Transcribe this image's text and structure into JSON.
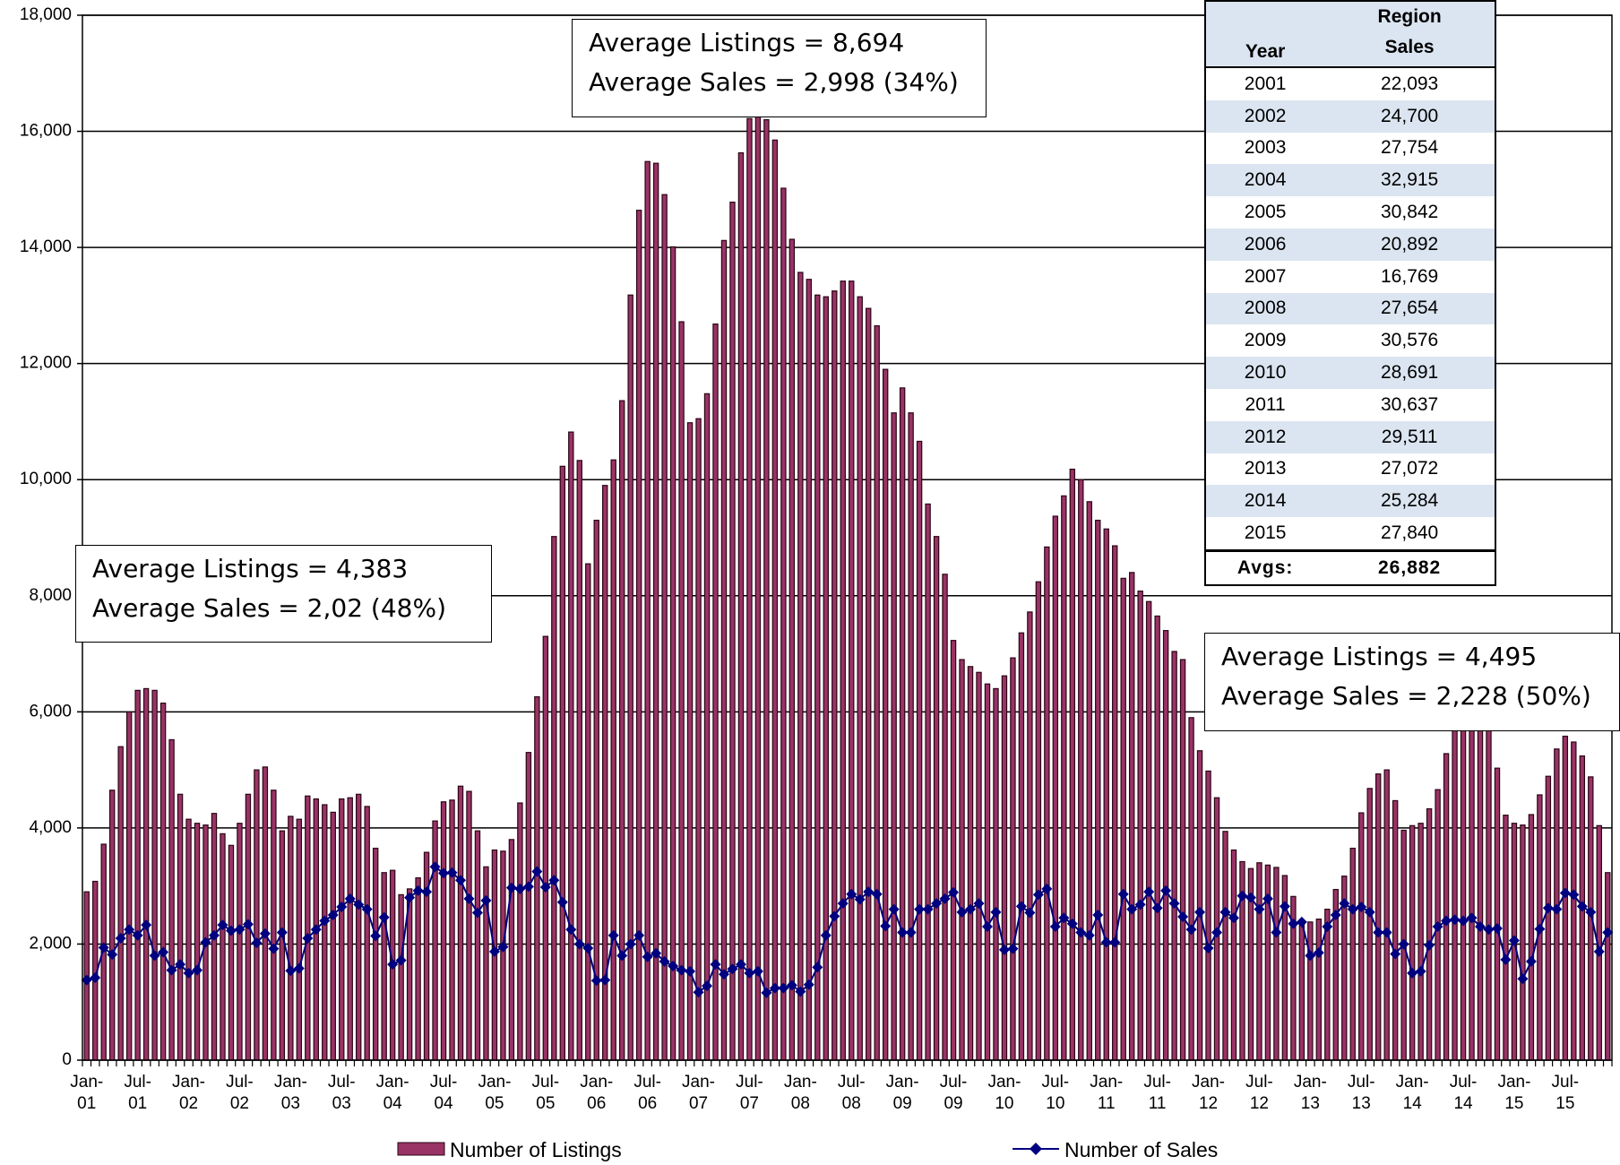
{
  "chart_data": {
    "type": "bar_line",
    "categories": [
      "Jan-01",
      null,
      null,
      null,
      null,
      null,
      "Jul-01",
      null,
      null,
      null,
      null,
      null,
      "Jan-02",
      null,
      null,
      null,
      null,
      null,
      "Jul-02",
      null,
      null,
      null,
      null,
      null,
      "Jan-03",
      null,
      null,
      null,
      null,
      null,
      "Jul-03",
      null,
      null,
      null,
      null,
      null,
      "Jan-04",
      null,
      null,
      null,
      null,
      null,
      "Jul-04",
      null,
      null,
      null,
      null,
      null,
      "Jan-05",
      null,
      null,
      null,
      null,
      null,
      "Jul-05",
      null,
      null,
      null,
      null,
      null,
      "Jan-06",
      null,
      null,
      null,
      null,
      null,
      "Jul-06",
      null,
      null,
      null,
      null,
      null,
      "Jan-07",
      null,
      null,
      null,
      null,
      null,
      "Jul-07",
      null,
      null,
      null,
      null,
      null,
      "Jan-08",
      null,
      null,
      null,
      null,
      null,
      "Jul-08",
      null,
      null,
      null,
      null,
      null,
      "Jan-09",
      null,
      null,
      null,
      null,
      null,
      "Jul-09",
      null,
      null,
      null,
      null,
      null,
      "Jan-10",
      null,
      null,
      null,
      null,
      null,
      "Jul-10",
      null,
      null,
      null,
      null,
      null,
      "Jan-11",
      null,
      null,
      null,
      null,
      null,
      "Jul-11",
      null,
      null,
      null,
      null,
      null,
      "Jan-12",
      null,
      null,
      null,
      null,
      null,
      "Jul-12",
      null,
      null,
      null,
      null,
      null,
      "Jan-13",
      null,
      null,
      null,
      null,
      null,
      "Jul-13",
      null,
      null,
      null,
      null,
      null,
      "Jan-14",
      null,
      null,
      null,
      null,
      null,
      "Jul-14",
      null,
      null,
      null,
      null,
      null,
      "Jan-15",
      null,
      null,
      null,
      null,
      null,
      "Jul-15",
      null,
      null,
      null,
      null,
      null
    ],
    "series": [
      {
        "name": "Number of Listings",
        "kind": "bar",
        "color": "#993366",
        "values": [
          2900,
          3080,
          3720,
          4650,
          5400,
          6000,
          6370,
          6400,
          6370,
          6150,
          5520,
          4580,
          4150,
          4080,
          4050,
          4250,
          3900,
          3700,
          4080,
          4580,
          5000,
          5050,
          4650,
          3950,
          4200,
          4150,
          4550,
          4500,
          4400,
          4270,
          4500,
          4520,
          4580,
          4370,
          3650,
          3230,
          3270,
          2850,
          2950,
          3140,
          3580,
          4120,
          4450,
          4480,
          4720,
          4630,
          3950,
          3330,
          3620,
          3600,
          3800,
          4430,
          5300,
          6260,
          7300,
          9020,
          10230,
          10820,
          10330,
          8550,
          9300,
          9900,
          10340,
          11360,
          13180,
          14640,
          15480,
          15450,
          14910,
          14010,
          12720,
          10980,
          11050,
          11480,
          12680,
          14120,
          14780,
          15630,
          16220,
          16350,
          16200,
          15850,
          15020,
          14140,
          13570,
          13450,
          13180,
          13150,
          13250,
          13420,
          13420,
          13150,
          12950,
          12650,
          11900,
          11150,
          11580,
          11150,
          10660,
          9580,
          9020,
          8370,
          7230,
          6900,
          6780,
          6680,
          6480,
          6400,
          6620,
          6930,
          7360,
          7720,
          8240,
          8840,
          9370,
          9720,
          10180,
          10000,
          9620,
          9300,
          9150,
          8860,
          8300,
          8400,
          8080,
          7900,
          7650,
          7400,
          7040,
          6900,
          5900,
          5330,
          4980,
          4520,
          3940,
          3620,
          3420,
          3300,
          3400,
          3360,
          3320,
          3180,
          2820,
          2400,
          2380,
          2430,
          2600,
          2940,
          3170,
          3650,
          4260,
          4680,
          4930,
          5000,
          4470,
          3960,
          4040,
          4080,
          4330,
          4660,
          5280,
          5880,
          6200,
          6200,
          6100,
          5700,
          5030,
          4220,
          4080,
          4050,
          4230,
          4570,
          4890,
          5360,
          5580,
          5480,
          5240,
          4880,
          4040,
          3230
        ]
      },
      {
        "name": "Number of Sales",
        "kind": "line",
        "color": "#000080",
        "values": [
          1380,
          1420,
          1940,
          1820,
          2100,
          2250,
          2150,
          2330,
          1800,
          1860,
          1550,
          1650,
          1500,
          1550,
          2030,
          2150,
          2330,
          2230,
          2250,
          2340,
          2020,
          2180,
          1920,
          2200,
          1540,
          1580,
          2100,
          2250,
          2400,
          2500,
          2640,
          2780,
          2680,
          2600,
          2140,
          2460,
          1650,
          1720,
          2800,
          2920,
          2900,
          3330,
          3220,
          3230,
          3100,
          2780,
          2540,
          2750,
          1870,
          1950,
          2970,
          2950,
          2990,
          3250,
          2980,
          3100,
          2720,
          2250,
          2000,
          1930,
          1370,
          1380,
          2150,
          1800,
          2000,
          2150,
          1780,
          1840,
          1700,
          1620,
          1550,
          1530,
          1170,
          1280,
          1650,
          1480,
          1570,
          1650,
          1500,
          1530,
          1160,
          1240,
          1240,
          1290,
          1180,
          1300,
          1600,
          2150,
          2480,
          2700,
          2860,
          2770,
          2900,
          2860,
          2310,
          2600,
          2200,
          2200,
          2600,
          2600,
          2700,
          2780,
          2890,
          2550,
          2600,
          2700,
          2300,
          2550,
          1900,
          1920,
          2650,
          2540,
          2850,
          2950,
          2300,
          2450,
          2350,
          2200,
          2150,
          2500,
          2030,
          2030,
          2860,
          2600,
          2680,
          2900,
          2620,
          2920,
          2700,
          2470,
          2250,
          2550,
          1930,
          2200,
          2550,
          2450,
          2830,
          2800,
          2600,
          2780,
          2200,
          2650,
          2350,
          2380,
          1800,
          1850,
          2300,
          2500,
          2700,
          2600,
          2640,
          2550,
          2200,
          2200,
          1830,
          2000,
          1500,
          1530,
          1980,
          2300,
          2400,
          2420,
          2400,
          2450,
          2300,
          2250,
          2270,
          1730,
          2060,
          1400,
          1700,
          2260,
          2620,
          2600,
          2880,
          2850,
          2650,
          2550,
          1870,
          2200
        ]
      }
    ],
    "ylim": [
      0,
      18000
    ],
    "yticks": [
      0,
      {
        "value": 2000,
        "label": "2,000"
      },
      {
        "value": 4000,
        "label": "4,000"
      },
      {
        "value": 6000,
        "label": "6,000"
      },
      {
        "value": 8000,
        "label": "8,000"
      },
      {
        "value": 10000,
        "label": "10,000"
      },
      {
        "value": 12000,
        "label": "12,000"
      },
      {
        "value": 14000,
        "label": "14,000"
      },
      {
        "value": 16000,
        "label": "16,000"
      },
      {
        "value": 18000,
        "label": "18,000"
      }
    ],
    "grid": true,
    "annotations": [
      [
        "Average Listings = 8,694",
        "Average Sales = 2,998 (34%)"
      ],
      [
        "Average Listings = 4,383",
        "Average Sales = 2,02 (48%)"
      ],
      [
        "Average Listings = 4,495",
        "Average Sales = 2,228 (50%)"
      ]
    ]
  },
  "table": {
    "header": [
      "Year",
      "Region Sales"
    ],
    "rows": [
      [
        "2001",
        "22,093"
      ],
      [
        "2002",
        "24,700"
      ],
      [
        "2003",
        "27,754"
      ],
      [
        "2004",
        "32,915"
      ],
      [
        "2005",
        "30,842"
      ],
      [
        "2006",
        "20,892"
      ],
      [
        "2007",
        "16,769"
      ],
      [
        "2008",
        "27,654"
      ],
      [
        "2009",
        "30,576"
      ],
      [
        "2010",
        "28,691"
      ],
      [
        "2011",
        "30,637"
      ],
      [
        "2012",
        "29,511"
      ],
      [
        "2013",
        "27,072"
      ],
      [
        "2014",
        "25,284"
      ],
      [
        "2015",
        "27,840"
      ]
    ],
    "footer": [
      "Avgs:",
      "26,882"
    ]
  }
}
